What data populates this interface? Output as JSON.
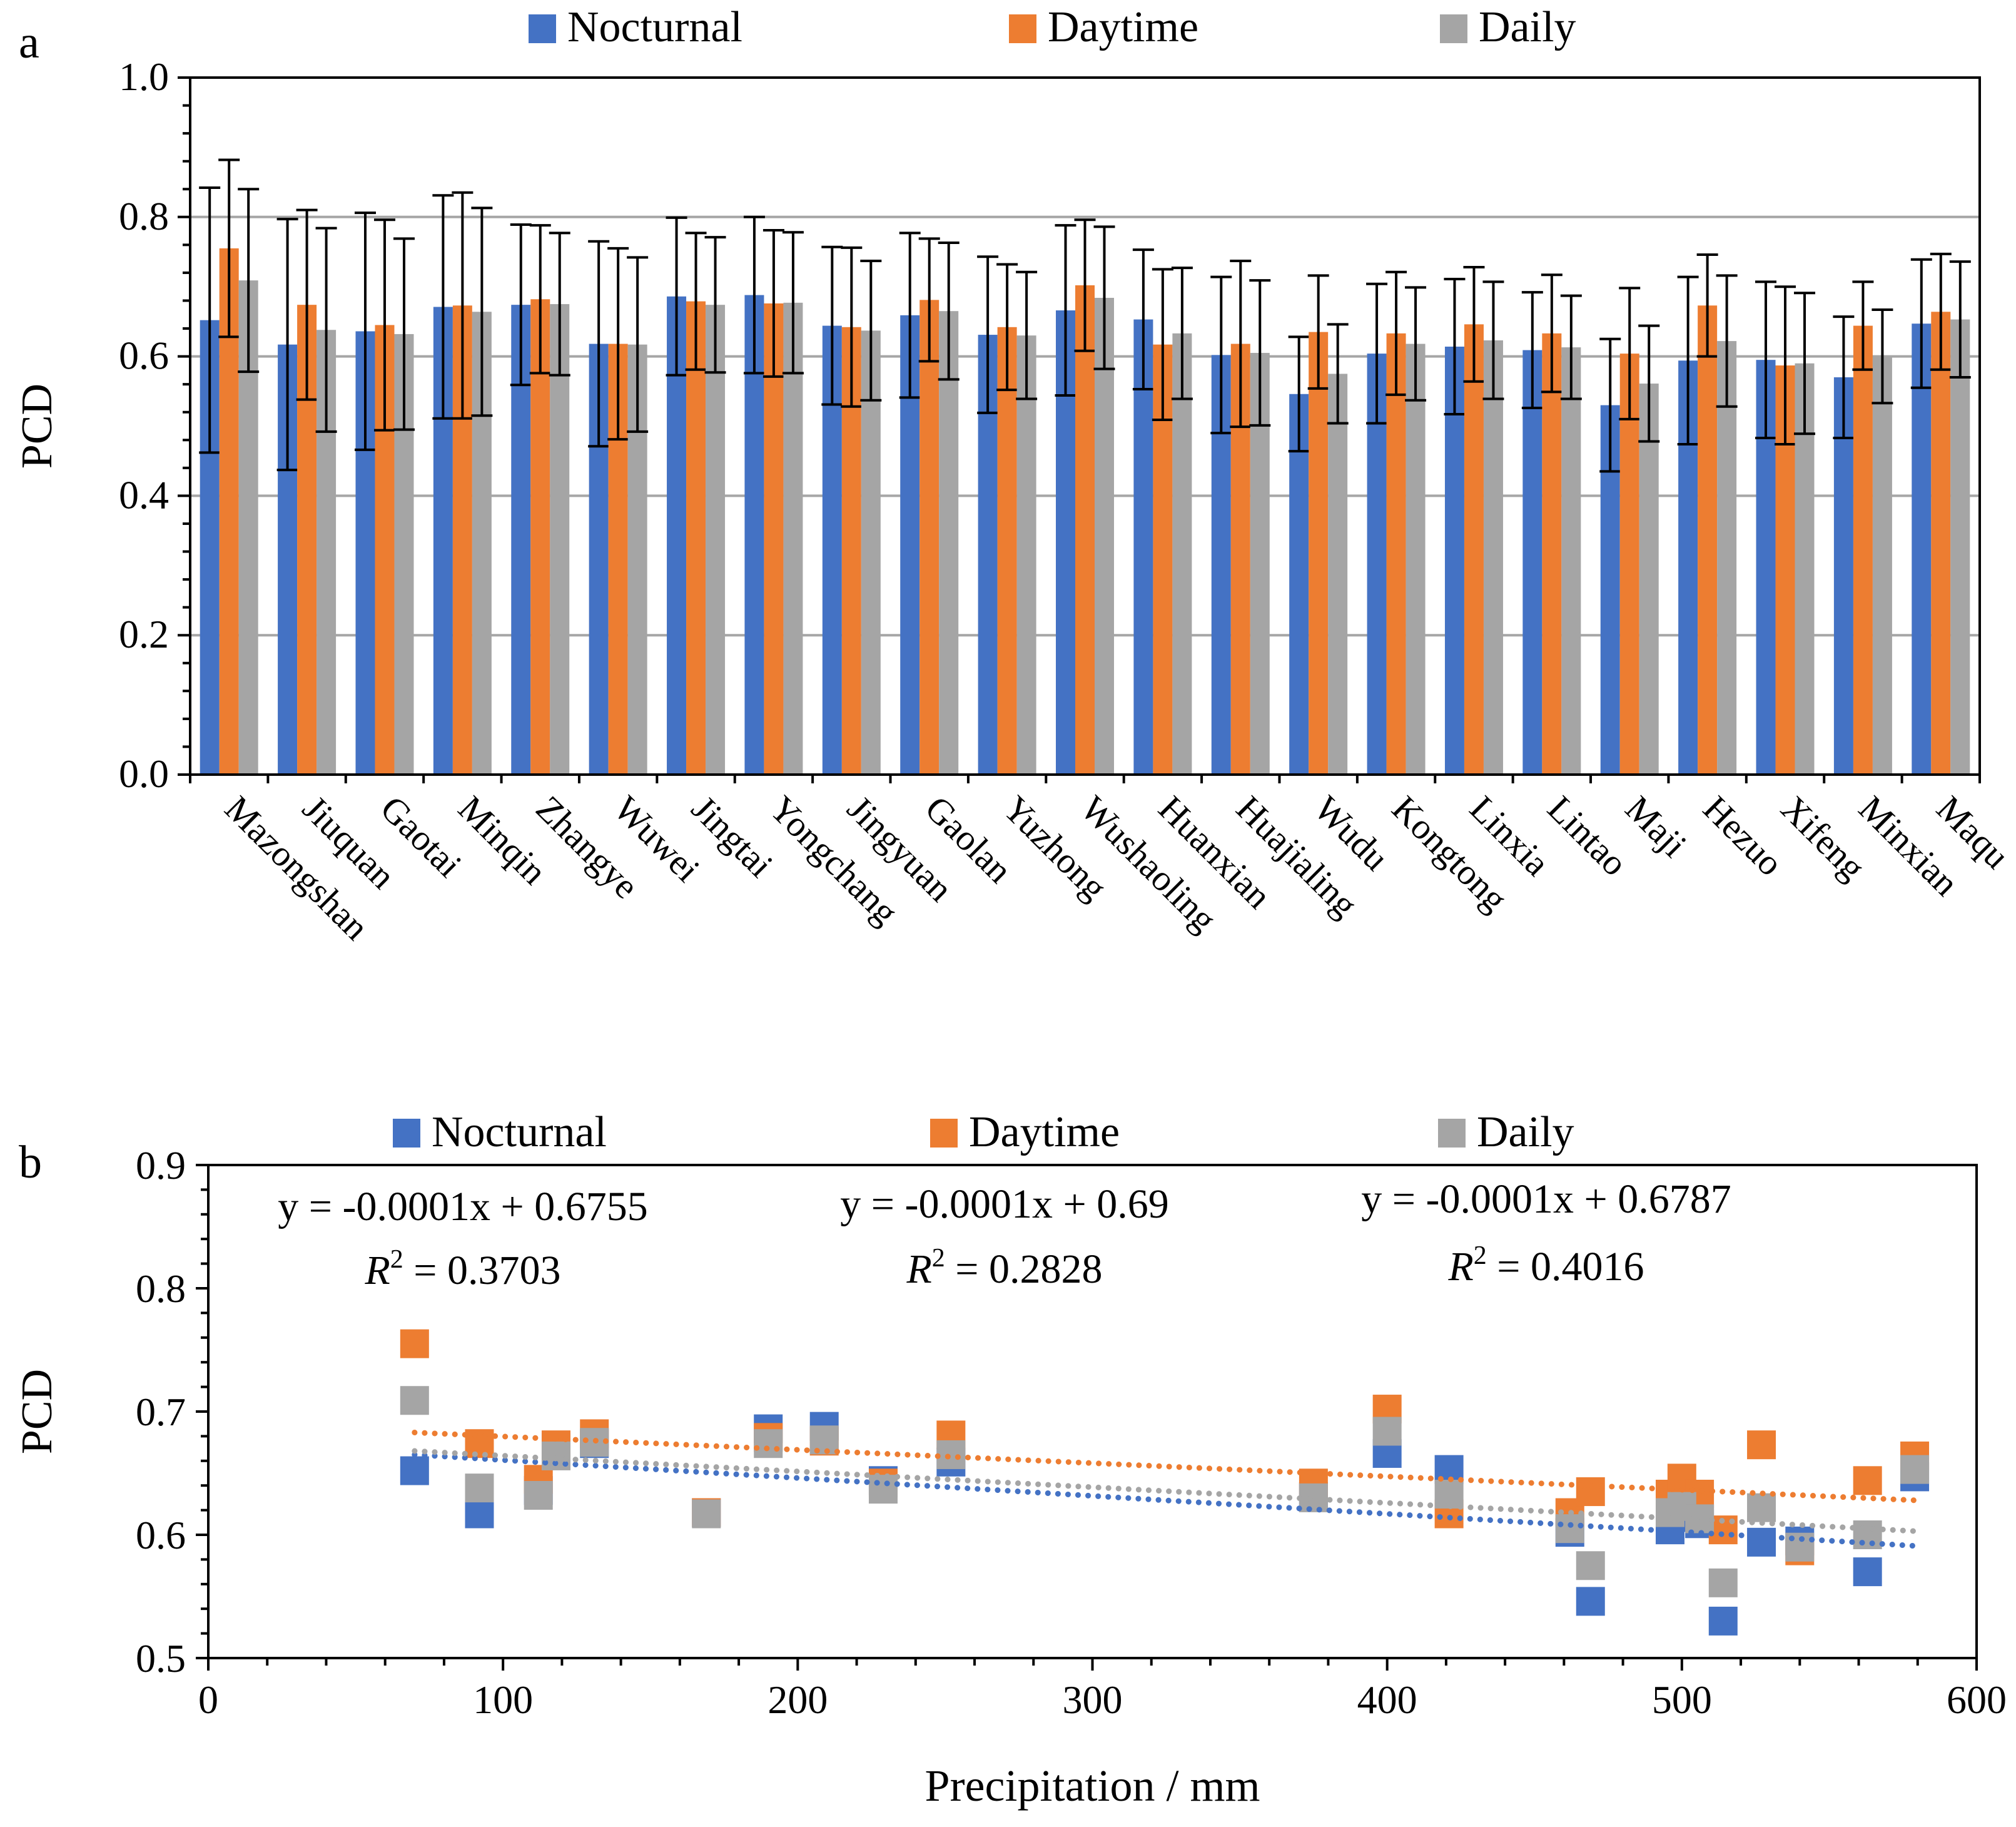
{
  "colors": {
    "Nocturnal": "#4472C4",
    "Daytime": "#ED7D31",
    "Daily": "#A5A5A5"
  },
  "chart_data": [
    {
      "panel": "a",
      "type": "bar",
      "ylabel": "PCD",
      "ylim": [
        0,
        1.0
      ],
      "yticks": [
        "0.0",
        "0.2",
        "0.4",
        "0.6",
        "0.8",
        "1.0"
      ],
      "ytick_values": [
        0,
        0.2,
        0.4,
        0.6,
        0.8,
        1.0
      ],
      "grid": true,
      "legend": "top-center",
      "categories": [
        "Mazongshan",
        "Jiuquan",
        "Gaotai",
        "Minqin",
        "Zhangye",
        "Wuwei",
        "Jingtai",
        "Yongchang",
        "Jingyuan",
        "Gaolan",
        "Yuzhong",
        "Wushaoling",
        "Huanxian",
        "Huajialing",
        "Wudu",
        "Kongtong",
        "Linxia",
        "Lintao",
        "Maji",
        "Hezuo",
        "Xifeng",
        "Minxian",
        "Maqu"
      ],
      "series": [
        {
          "name": "Nocturnal",
          "values": [
            0.652,
            0.617,
            0.636,
            0.671,
            0.674,
            0.618,
            0.686,
            0.688,
            0.644,
            0.659,
            0.631,
            0.666,
            0.653,
            0.602,
            0.546,
            0.604,
            0.614,
            0.609,
            0.53,
            0.594,
            0.595,
            0.57,
            0.647
          ],
          "errors": [
            0.19,
            0.18,
            0.17,
            0.16,
            0.115,
            0.147,
            0.113,
            0.112,
            0.113,
            0.118,
            0.112,
            0.122,
            0.1,
            0.112,
            0.082,
            0.1,
            0.097,
            0.083,
            0.095,
            0.12,
            0.112,
            0.087,
            0.092
          ]
        },
        {
          "name": "Daytime",
          "values": [
            0.755,
            0.674,
            0.645,
            0.673,
            0.682,
            0.618,
            0.679,
            0.676,
            0.642,
            0.681,
            0.642,
            0.702,
            0.617,
            0.618,
            0.635,
            0.633,
            0.646,
            0.633,
            0.604,
            0.673,
            0.587,
            0.644,
            0.664
          ],
          "errors": [
            0.127,
            0.136,
            0.151,
            0.162,
            0.106,
            0.137,
            0.098,
            0.105,
            0.114,
            0.088,
            0.09,
            0.094,
            0.108,
            0.119,
            0.081,
            0.088,
            0.082,
            0.084,
            0.094,
            0.073,
            0.113,
            0.063,
            0.083
          ]
        },
        {
          "name": "Daily",
          "values": [
            0.709,
            0.638,
            0.632,
            0.664,
            0.675,
            0.617,
            0.674,
            0.677,
            0.637,
            0.665,
            0.63,
            0.684,
            0.633,
            0.605,
            0.575,
            0.618,
            0.623,
            0.613,
            0.561,
            0.622,
            0.59,
            0.6,
            0.653
          ],
          "errors": [
            0.131,
            0.146,
            0.137,
            0.149,
            0.102,
            0.125,
            0.097,
            0.101,
            0.1,
            0.098,
            0.091,
            0.102,
            0.094,
            0.104,
            0.071,
            0.081,
            0.084,
            0.074,
            0.083,
            0.094,
            0.101,
            0.067,
            0.083
          ]
        }
      ]
    },
    {
      "panel": "b",
      "type": "scatter",
      "xlabel": "Precipitation / mm",
      "ylabel": "PCD",
      "xlim": [
        0,
        600
      ],
      "ylim": [
        0.5,
        0.9
      ],
      "xticks": [
        "0",
        "100",
        "200",
        "300",
        "400",
        "500",
        "600"
      ],
      "xtick_values": [
        0,
        100,
        200,
        300,
        400,
        500,
        600
      ],
      "yticks": [
        "0.5",
        "0.6",
        "0.7",
        "0.8",
        "0.9"
      ],
      "ytick_values": [
        0.5,
        0.6,
        0.7,
        0.8,
        0.9
      ],
      "grid": false,
      "legend": "top",
      "x": [
        70,
        92,
        112,
        118,
        131,
        169,
        190,
        209,
        229,
        252,
        375,
        400,
        421,
        462,
        469,
        496,
        500,
        506,
        514,
        527,
        540,
        563,
        579
      ],
      "series": [
        {
          "name": "Nocturnal",
          "y": [
            0.652,
            0.617,
            0.636,
            0.671,
            0.674,
            0.618,
            0.686,
            0.688,
            0.644,
            0.659,
            0.631,
            0.666,
            0.653,
            0.602,
            0.546,
            0.604,
            0.614,
            0.609,
            0.53,
            0.594,
            0.595,
            0.57,
            0.647
          ],
          "trend": {
            "equation": "y = -0.0001x + 0.6755",
            "r2_label": "R",
            "r2_sup": "2",
            "r2_value": " = 0.3703",
            "from": [
              70,
              0.665
            ],
            "to": [
              579,
              0.591
            ]
          }
        },
        {
          "name": "Daytime",
          "y": [
            0.755,
            0.674,
            0.645,
            0.673,
            0.682,
            0.618,
            0.679,
            0.676,
            0.642,
            0.681,
            0.642,
            0.702,
            0.617,
            0.618,
            0.635,
            0.633,
            0.646,
            0.633,
            0.604,
            0.673,
            0.587,
            0.644,
            0.664
          ],
          "trend": {
            "equation": "y = -0.0001x + 0.69",
            "r2_label": "R",
            "r2_sup": "2",
            "r2_value": " = 0.2828",
            "from": [
              70,
              0.683
            ],
            "to": [
              579,
              0.628
            ]
          }
        },
        {
          "name": "Daily",
          "y": [
            0.709,
            0.638,
            0.632,
            0.664,
            0.675,
            0.617,
            0.674,
            0.677,
            0.637,
            0.665,
            0.63,
            0.684,
            0.633,
            0.605,
            0.575,
            0.618,
            0.623,
            0.613,
            0.561,
            0.622,
            0.59,
            0.6,
            0.653
          ],
          "trend": {
            "equation": "y = -0.0001x + 0.6787",
            "r2_label": "R",
            "r2_sup": "2",
            "r2_value": " = 0.4016",
            "from": [
              70,
              0.668
            ],
            "to": [
              579,
              0.603
            ]
          }
        }
      ]
    }
  ]
}
